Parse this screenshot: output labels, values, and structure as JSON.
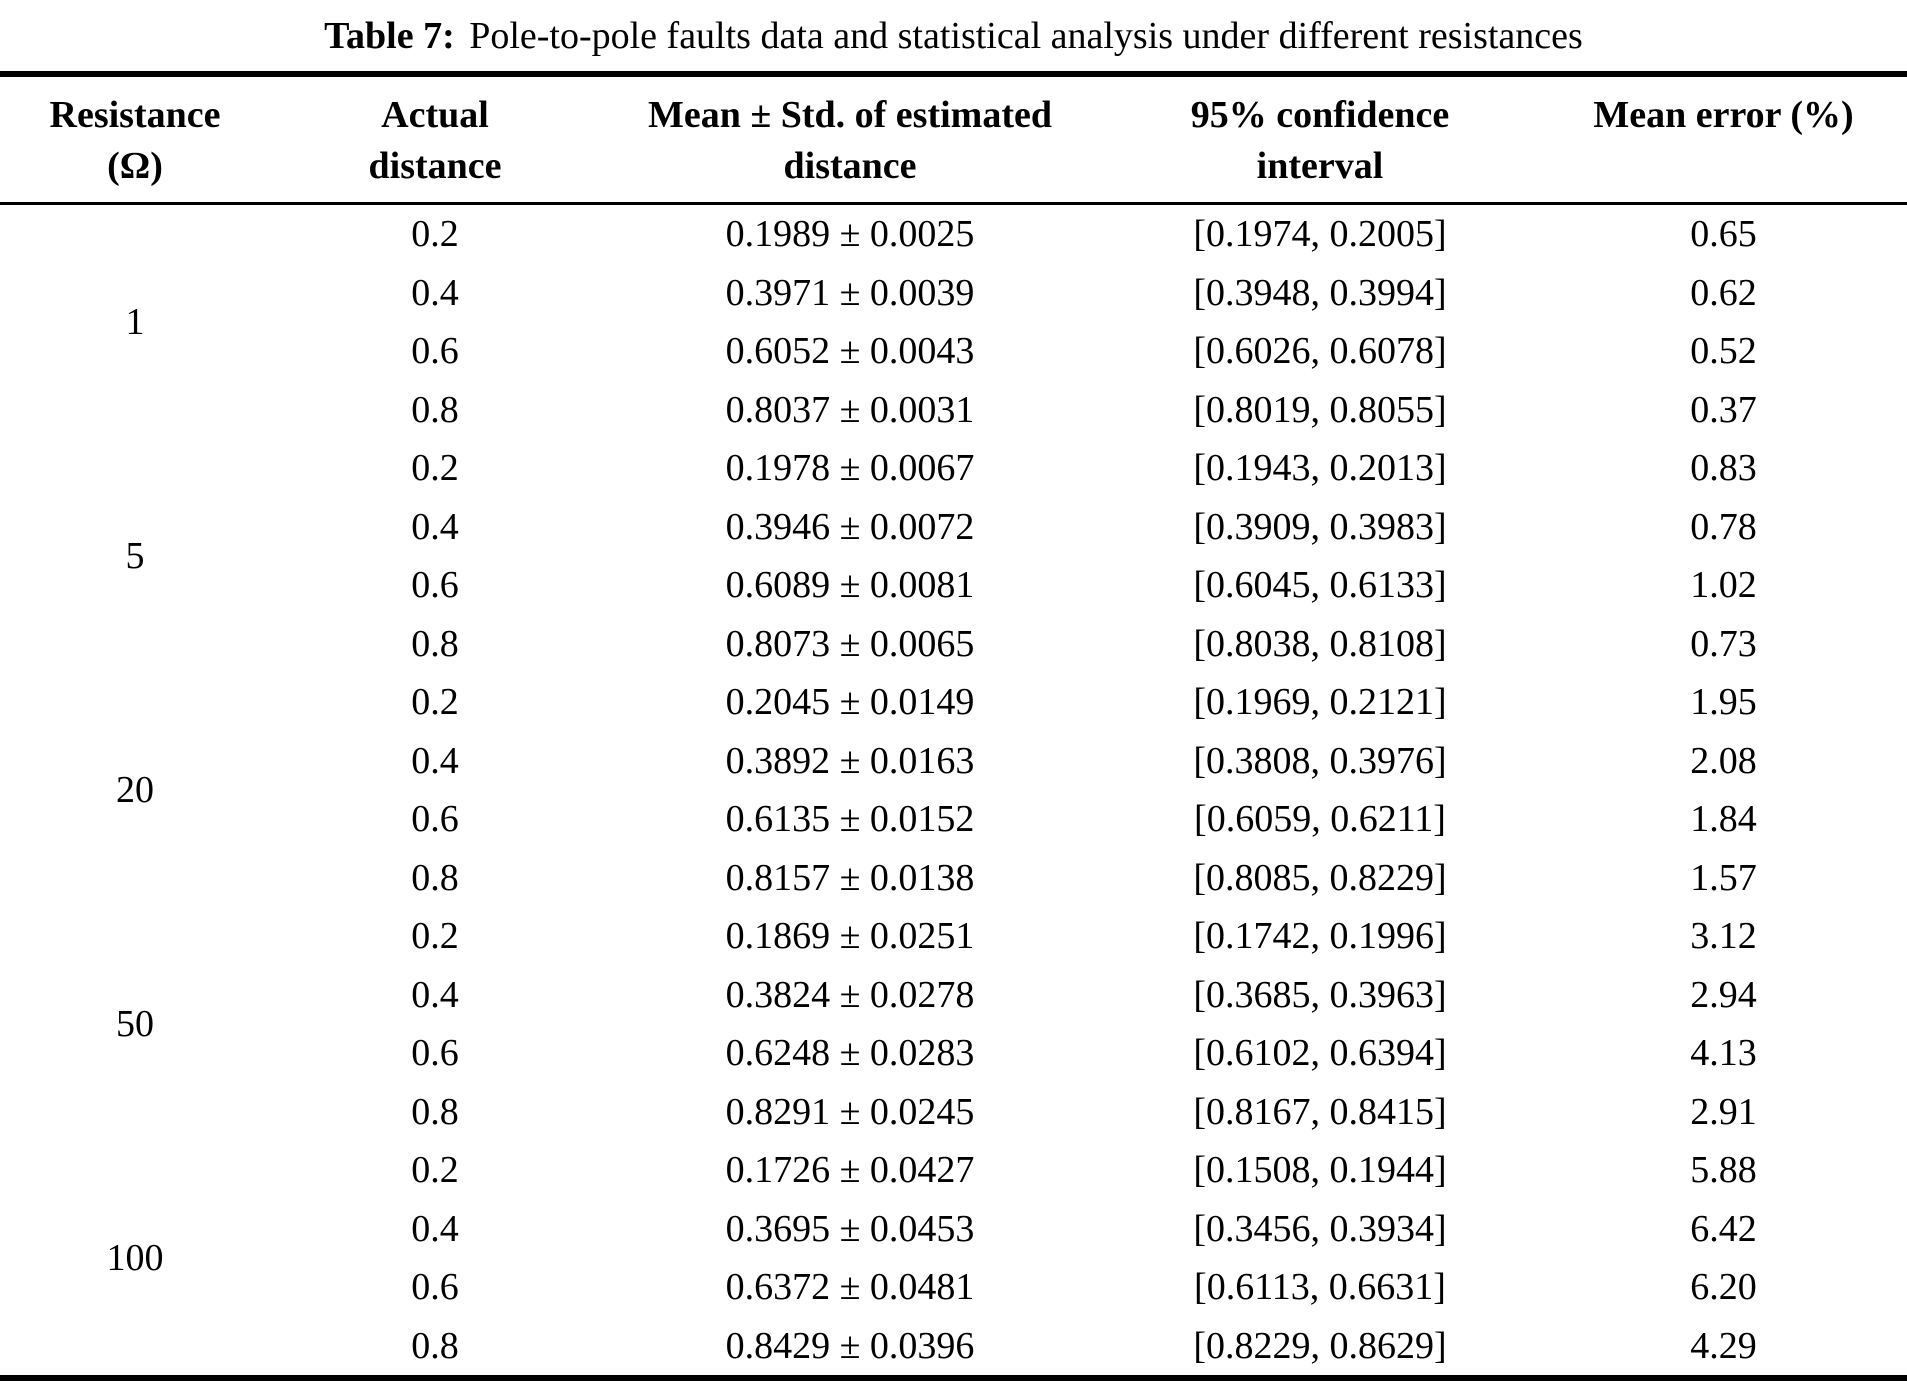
{
  "caption": {
    "label": "Table 7:",
    "text": "Pole-to-pole faults data and statistical analysis under different resistances"
  },
  "columns": [
    {
      "line1": "Resistance",
      "line2": "(Ω)"
    },
    {
      "line1": "Actual",
      "line2": "distance"
    },
    {
      "line1": "Mean ± Std. of estimated",
      "line2": "distance"
    },
    {
      "line1": "95% confidence",
      "line2": "interval"
    },
    {
      "line1": "Mean error (%)",
      "line2": ""
    }
  ],
  "groups": [
    {
      "resistance": "1",
      "rows": [
        {
          "actual_distance": "0.2",
          "mean_std": "0.1989 ± 0.0025",
          "confidence_interval": "[0.1974, 0.2005]",
          "mean_error_pct": "0.65"
        },
        {
          "actual_distance": "0.4",
          "mean_std": "0.3971 ± 0.0039",
          "confidence_interval": "[0.3948, 0.3994]",
          "mean_error_pct": "0.62"
        },
        {
          "actual_distance": "0.6",
          "mean_std": "0.6052 ± 0.0043",
          "confidence_interval": "[0.6026, 0.6078]",
          "mean_error_pct": "0.52"
        },
        {
          "actual_distance": "0.8",
          "mean_std": "0.8037 ± 0.0031",
          "confidence_interval": "[0.8019, 0.8055]",
          "mean_error_pct": "0.37"
        }
      ]
    },
    {
      "resistance": "5",
      "rows": [
        {
          "actual_distance": "0.2",
          "mean_std": "0.1978 ± 0.0067",
          "confidence_interval": "[0.1943, 0.2013]",
          "mean_error_pct": "0.83"
        },
        {
          "actual_distance": "0.4",
          "mean_std": "0.3946 ± 0.0072",
          "confidence_interval": "[0.3909, 0.3983]",
          "mean_error_pct": "0.78"
        },
        {
          "actual_distance": "0.6",
          "mean_std": "0.6089 ± 0.0081",
          "confidence_interval": "[0.6045, 0.6133]",
          "mean_error_pct": "1.02"
        },
        {
          "actual_distance": "0.8",
          "mean_std": "0.8073 ± 0.0065",
          "confidence_interval": "[0.8038, 0.8108]",
          "mean_error_pct": "0.73"
        }
      ]
    },
    {
      "resistance": "20",
      "rows": [
        {
          "actual_distance": "0.2",
          "mean_std": "0.2045 ± 0.0149",
          "confidence_interval": "[0.1969, 0.2121]",
          "mean_error_pct": "1.95"
        },
        {
          "actual_distance": "0.4",
          "mean_std": "0.3892 ± 0.0163",
          "confidence_interval": "[0.3808, 0.3976]",
          "mean_error_pct": "2.08"
        },
        {
          "actual_distance": "0.6",
          "mean_std": "0.6135 ± 0.0152",
          "confidence_interval": "[0.6059, 0.6211]",
          "mean_error_pct": "1.84"
        },
        {
          "actual_distance": "0.8",
          "mean_std": "0.8157 ± 0.0138",
          "confidence_interval": "[0.8085, 0.8229]",
          "mean_error_pct": "1.57"
        }
      ]
    },
    {
      "resistance": "50",
      "rows": [
        {
          "actual_distance": "0.2",
          "mean_std": "0.1869 ± 0.0251",
          "confidence_interval": "[0.1742, 0.1996]",
          "mean_error_pct": "3.12"
        },
        {
          "actual_distance": "0.4",
          "mean_std": "0.3824 ± 0.0278",
          "confidence_interval": "[0.3685, 0.3963]",
          "mean_error_pct": "2.94"
        },
        {
          "actual_distance": "0.6",
          "mean_std": "0.6248 ± 0.0283",
          "confidence_interval": "[0.6102, 0.6394]",
          "mean_error_pct": "4.13"
        },
        {
          "actual_distance": "0.8",
          "mean_std": "0.8291 ± 0.0245",
          "confidence_interval": "[0.8167, 0.8415]",
          "mean_error_pct": "2.91"
        }
      ]
    },
    {
      "resistance": "100",
      "rows": [
        {
          "actual_distance": "0.2",
          "mean_std": "0.1726 ± 0.0427",
          "confidence_interval": "[0.1508, 0.1944]",
          "mean_error_pct": "5.88"
        },
        {
          "actual_distance": "0.4",
          "mean_std": "0.3695 ± 0.0453",
          "confidence_interval": "[0.3456, 0.3934]",
          "mean_error_pct": "6.42"
        },
        {
          "actual_distance": "0.6",
          "mean_std": "0.6372 ± 0.0481",
          "confidence_interval": "[0.6113, 0.6631]",
          "mean_error_pct": "6.20"
        },
        {
          "actual_distance": "0.8",
          "mean_std": "0.8429 ± 0.0396",
          "confidence_interval": "[0.8229, 0.8629]",
          "mean_error_pct": "4.29"
        }
      ]
    }
  ]
}
